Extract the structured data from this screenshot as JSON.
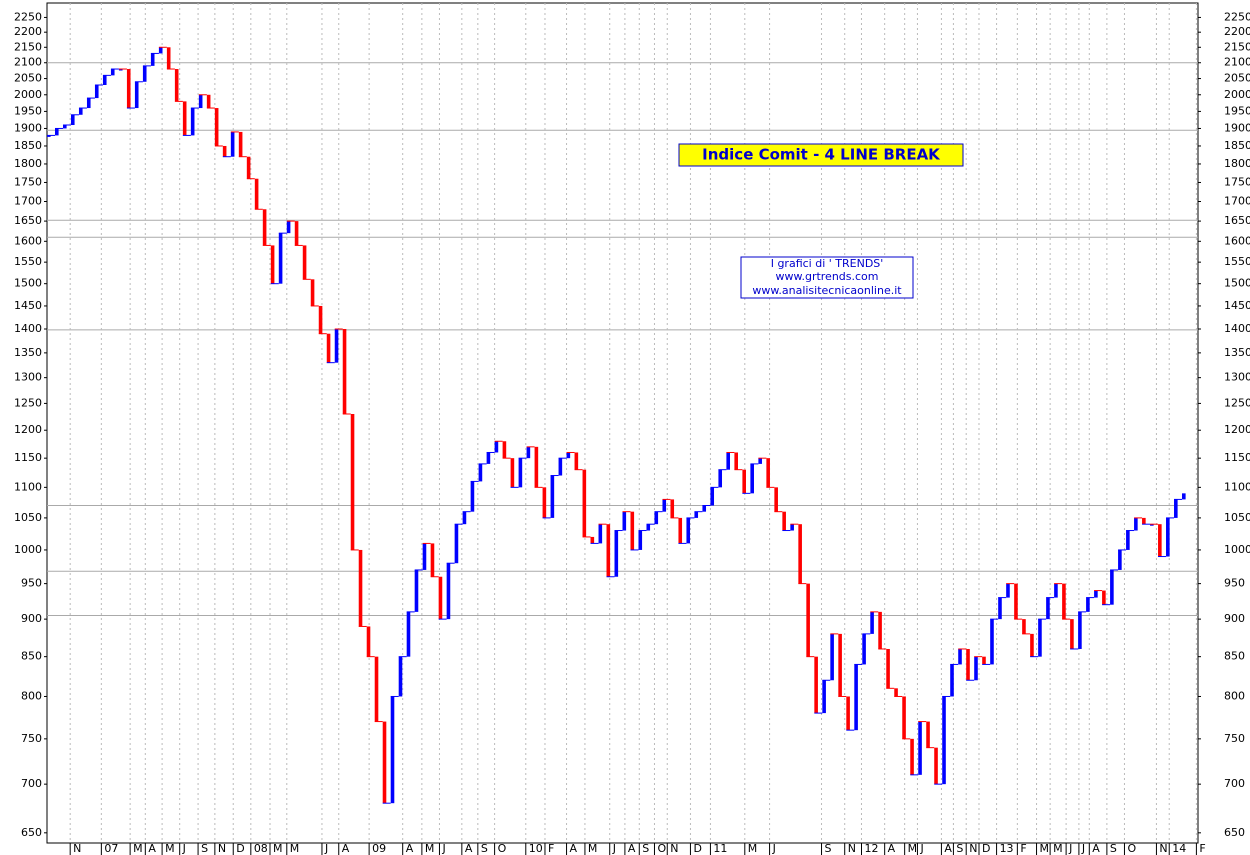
{
  "chart_data": {
    "type": "linebreak",
    "title": "Indice Comit - 4  LINE BREAK",
    "credits": [
      "I grafici di ' TRENDS'",
      "www.grtrends.com",
      "www.analisitecnicaonline.it"
    ],
    "log_scale": true,
    "up_color": "#0000ff",
    "down_color": "#ff0000",
    "values": [
      1880,
      1900,
      1910,
      1940,
      1960,
      1990,
      2030,
      2060,
      2080,
      2080,
      1960,
      2040,
      2090,
      2130,
      2150,
      2080,
      1980,
      1880,
      1960,
      2000,
      1960,
      1850,
      1820,
      1890,
      1820,
      1760,
      1680,
      1590,
      1500,
      1620,
      1650,
      1590,
      1510,
      1450,
      1390,
      1330,
      1400,
      1230,
      1000,
      890,
      850,
      770,
      680,
      800,
      850,
      910,
      970,
      1010,
      960,
      900,
      980,
      1040,
      1060,
      1110,
      1140,
      1160,
      1180,
      1150,
      1100,
      1150,
      1170,
      1100,
      1050,
      1120,
      1150,
      1160,
      1130,
      1020,
      1010,
      1040,
      960,
      1030,
      1060,
      1000,
      1030,
      1040,
      1060,
      1080,
      1050,
      1010,
      1050,
      1060,
      1070,
      1100,
      1130,
      1160,
      1130,
      1090,
      1140,
      1150,
      1100,
      1060,
      1030,
      1040,
      950,
      850,
      780,
      820,
      880,
      800,
      760,
      840,
      880,
      910,
      860,
      810,
      800,
      750,
      710,
      770,
      740,
      700,
      800,
      840,
      860,
      820,
      850,
      840,
      900,
      930,
      950,
      900,
      880,
      850,
      900,
      930,
      950,
      900,
      860,
      910,
      930,
      940,
      920,
      970,
      1000,
      1030,
      1050,
      1040,
      1040,
      990,
      1050,
      1080,
      1090
    ],
    "xlim": [
      0,
      144
    ],
    "xticks": [
      {
        "value": 2.9,
        "label": "N"
      },
      {
        "value": 6.8,
        "label": "07"
      },
      {
        "value": 10.4,
        "label": "M"
      },
      {
        "value": 12.3,
        "label": "A"
      },
      {
        "value": 14.4,
        "label": "M"
      },
      {
        "value": 16.6,
        "label": "J"
      },
      {
        "value": 18.9,
        "label": "S"
      },
      {
        "value": 21,
        "label": "N"
      },
      {
        "value": 23.3,
        "label": "D"
      },
      {
        "value": 25.5,
        "label": "08"
      },
      {
        "value": 27.9,
        "label": "M"
      },
      {
        "value": 30,
        "label": "M"
      },
      {
        "value": 34.4,
        "label": "J"
      },
      {
        "value": 36.5,
        "label": "A"
      },
      {
        "value": 40.3,
        "label": "09"
      },
      {
        "value": 44.5,
        "label": "A"
      },
      {
        "value": 46.9,
        "label": "M"
      },
      {
        "value": 49.1,
        "label": "J"
      },
      {
        "value": 51.9,
        "label": "A"
      },
      {
        "value": 53.9,
        "label": "S"
      },
      {
        "value": 56,
        "label": "O"
      },
      {
        "value": 59.9,
        "label": "10"
      },
      {
        "value": 62.3,
        "label": "F"
      },
      {
        "value": 65,
        "label": "A"
      },
      {
        "value": 67.3,
        "label": "M"
      },
      {
        "value": 70.4,
        "label": "J"
      },
      {
        "value": 72.3,
        "label": "A"
      },
      {
        "value": 74.1,
        "label": "S"
      },
      {
        "value": 76,
        "label": "O"
      },
      {
        "value": 77.6,
        "label": "N"
      },
      {
        "value": 80.5,
        "label": "D"
      },
      {
        "value": 83,
        "label": "11"
      },
      {
        "value": 87.3,
        "label": "M"
      },
      {
        "value": 90.4,
        "label": "J"
      },
      {
        "value": 96.9,
        "label": "S"
      },
      {
        "value": 99.8,
        "label": "N"
      },
      {
        "value": 101.9,
        "label": "12"
      },
      {
        "value": 104.8,
        "label": "A"
      },
      {
        "value": 107.3,
        "label": "M"
      },
      {
        "value": 108.9,
        "label": "J"
      },
      {
        "value": 111.9,
        "label": "A"
      },
      {
        "value": 113.4,
        "label": "S"
      },
      {
        "value": 115,
        "label": "N"
      },
      {
        "value": 116.6,
        "label": "D"
      },
      {
        "value": 118.8,
        "label": "13"
      },
      {
        "value": 121.4,
        "label": "F"
      },
      {
        "value": 123.8,
        "label": "M"
      },
      {
        "value": 125.5,
        "label": "M"
      },
      {
        "value": 127.5,
        "label": "J"
      },
      {
        "value": 129.1,
        "label": "J"
      },
      {
        "value": 130.4,
        "label": "A"
      },
      {
        "value": 132.6,
        "label": "S"
      },
      {
        "value": 134.8,
        "label": "O"
      },
      {
        "value": 138.8,
        "label": "N"
      },
      {
        "value": 140.4,
        "label": "14"
      },
      {
        "value": 143.8,
        "label": "F"
      }
    ],
    "ylim": [
      640,
      2300
    ],
    "yticks": [
      650,
      700,
      750,
      800,
      850,
      900,
      950,
      1000,
      1050,
      1100,
      1150,
      1200,
      1250,
      1300,
      1350,
      1400,
      1450,
      1500,
      1550,
      1600,
      1650,
      1700,
      1750,
      1800,
      1850,
      1900,
      1950,
      2000,
      2050,
      2100,
      2150,
      2200,
      2250
    ],
    "hlines": [
      2100,
      1895,
      1652,
      1610,
      1398,
      1070,
      968,
      905
    ]
  }
}
